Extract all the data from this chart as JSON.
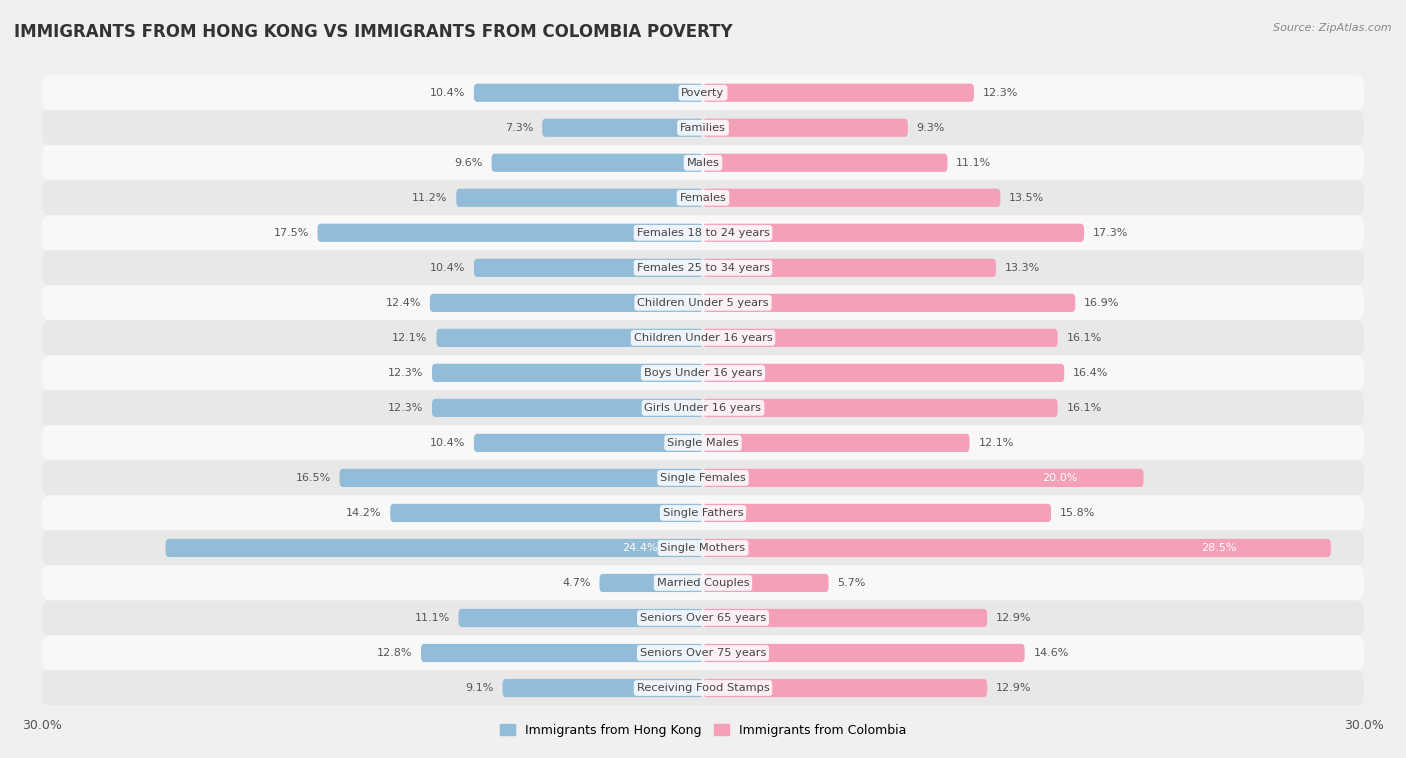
{
  "title": "IMMIGRANTS FROM HONG KONG VS IMMIGRANTS FROM COLOMBIA POVERTY",
  "source": "Source: ZipAtlas.com",
  "categories": [
    "Poverty",
    "Families",
    "Males",
    "Females",
    "Females 18 to 24 years",
    "Females 25 to 34 years",
    "Children Under 5 years",
    "Children Under 16 years",
    "Boys Under 16 years",
    "Girls Under 16 years",
    "Single Males",
    "Single Females",
    "Single Fathers",
    "Single Mothers",
    "Married Couples",
    "Seniors Over 65 years",
    "Seniors Over 75 years",
    "Receiving Food Stamps"
  ],
  "hong_kong": [
    10.4,
    7.3,
    9.6,
    11.2,
    17.5,
    10.4,
    12.4,
    12.1,
    12.3,
    12.3,
    10.4,
    16.5,
    14.2,
    24.4,
    4.7,
    11.1,
    12.8,
    9.1
  ],
  "colombia": [
    12.3,
    9.3,
    11.1,
    13.5,
    17.3,
    13.3,
    16.9,
    16.1,
    16.4,
    16.1,
    12.1,
    20.0,
    15.8,
    28.5,
    5.7,
    12.9,
    14.6,
    12.9
  ],
  "hk_color": "#92bcd8",
  "col_color": "#f4a0b8",
  "hk_label": "Immigrants from Hong Kong",
  "col_label": "Immigrants from Colombia",
  "axis_max": 30.0,
  "background_color": "#f0f0f0",
  "row_color_odd": "#f8f8f8",
  "row_color_even": "#e8e8e8",
  "title_fontsize": 12,
  "bar_height": 0.52,
  "label_color_dark": "#555555",
  "label_color_white": "#ffffff",
  "white_label_threshold": 18.0
}
